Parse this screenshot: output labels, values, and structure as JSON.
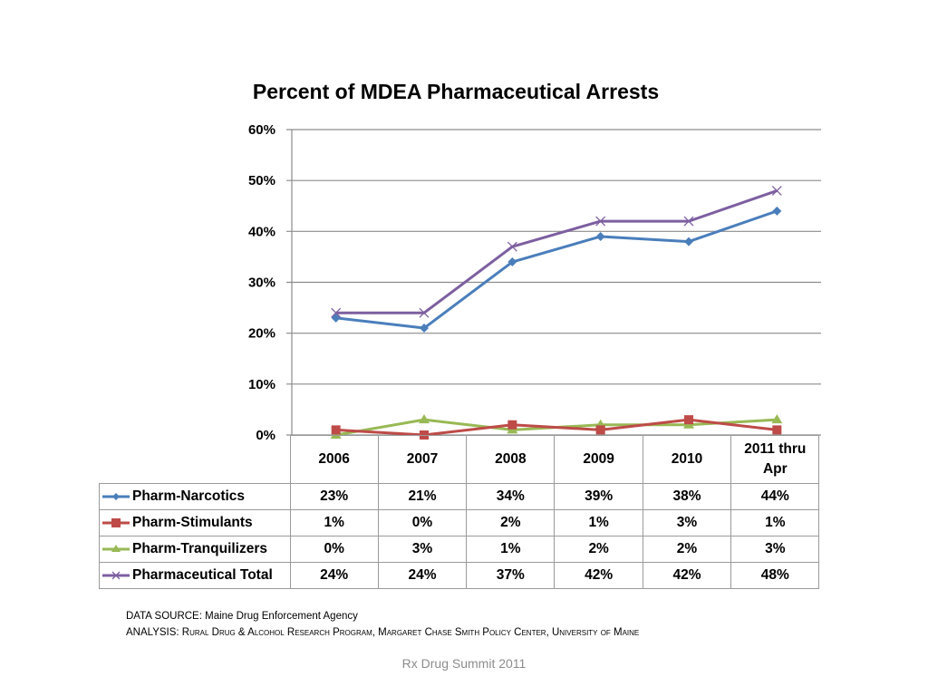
{
  "chart_data": {
    "type": "line",
    "title": "Percent of MDEA Pharmaceutical Arrests",
    "xlabel": "",
    "ylabel": "",
    "categories": [
      "2006",
      "2007",
      "2008",
      "2009",
      "2010",
      "2011 thru Apr"
    ],
    "ylim": [
      0,
      60
    ],
    "yticks": [
      "0%",
      "10%",
      "20%",
      "30%",
      "40%",
      "50%",
      "60%"
    ],
    "ytick_values": [
      0,
      10,
      20,
      30,
      40,
      50,
      60
    ],
    "grid": true,
    "legend": "data-table-below",
    "series": [
      {
        "name": "Pharm-Narcotics",
        "color": "#4a7ebb",
        "marker": "diamond",
        "values": [
          23,
          21,
          34,
          39,
          38,
          44
        ],
        "labels": [
          "23%",
          "21%",
          "34%",
          "39%",
          "38%",
          "44%"
        ]
      },
      {
        "name": "Pharm-Stimulants",
        "color": "#be4b48",
        "marker": "square",
        "values": [
          1,
          0,
          2,
          1,
          3,
          1
        ],
        "labels": [
          "1%",
          "0%",
          "2%",
          "1%",
          "3%",
          "1%"
        ]
      },
      {
        "name": "Pharm-Tranquilizers",
        "color": "#98b954",
        "marker": "triangle",
        "values": [
          0,
          3,
          1,
          2,
          2,
          3
        ],
        "labels": [
          "0%",
          "3%",
          "1%",
          "2%",
          "2%",
          "3%"
        ]
      },
      {
        "name": "Pharmaceutical Total",
        "color": "#7d5fa0",
        "marker": "x",
        "values": [
          24,
          24,
          37,
          42,
          42,
          48
        ],
        "labels": [
          "24%",
          "24%",
          "37%",
          "42%",
          "42%",
          "48%"
        ]
      }
    ]
  },
  "category_header": [
    [
      "2006"
    ],
    [
      "2007"
    ],
    [
      "2008"
    ],
    [
      "2009"
    ],
    [
      "2010"
    ],
    [
      "2011 thru",
      "Apr"
    ]
  ],
  "source": {
    "data_source": "DATA SOURCE: Maine Drug Enforcement Agency",
    "analysis_prefix": "ANALYSIS: ",
    "analysis_text": "Rural Drug & Alcohol Research Program, Margaret Chase Smith Policy Center, University of Maine"
  },
  "footer": "Rx Drug Summit 2011"
}
